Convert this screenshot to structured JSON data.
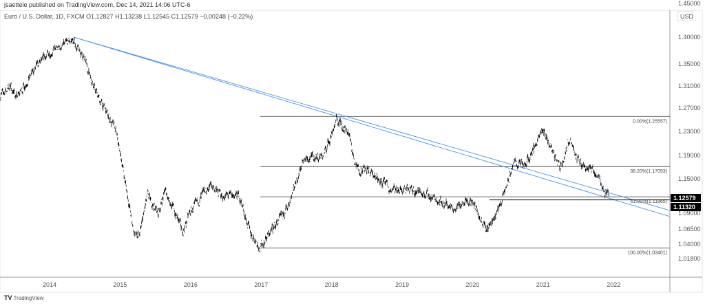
{
  "header": {
    "published": "jsaettele published on TradingView.com, Dec 14, 2021 14:06 UTC-6",
    "legend": "Euro / U.S. Dollar, 1D, FXCM  O1.12827  H1.13238  L1.12545  C1.12579  −0.00248 (−0.22%)"
  },
  "footer": {
    "logo": "TV",
    "brand": "TradingView"
  },
  "chart_data": {
    "type": "line",
    "title": "Euro / U.S. Dollar, 1D, FXCM",
    "currency": "USD",
    "x_ticks": [
      "2014",
      "2015",
      "2016",
      "2017",
      "2018",
      "2019",
      "2020",
      "2021",
      "2022"
    ],
    "y_ticks": [
      "1.40000",
      "1.35000",
      "1.31000",
      "1.27000",
      "1.23000",
      "1.19000",
      "1.15000",
      "1.09000",
      "1.06500",
      "1.04000",
      "1.01800"
    ],
    "top_tick_partial": "1.45000",
    "series": [
      {
        "name": "EURUSD",
        "points": [
          [
            2013.3,
            1.29
          ],
          [
            2013.45,
            1.31
          ],
          [
            2013.55,
            1.29
          ],
          [
            2013.8,
            1.34
          ],
          [
            2014.0,
            1.37
          ],
          [
            2014.15,
            1.38
          ],
          [
            2014.33,
            1.395
          ],
          [
            2014.5,
            1.36
          ],
          [
            2014.7,
            1.29
          ],
          [
            2014.95,
            1.23
          ],
          [
            2015.05,
            1.17
          ],
          [
            2015.2,
            1.06
          ],
          [
            2015.28,
            1.05
          ],
          [
            2015.4,
            1.12
          ],
          [
            2015.55,
            1.09
          ],
          [
            2015.65,
            1.13
          ],
          [
            2015.9,
            1.06
          ],
          [
            2016.0,
            1.09
          ],
          [
            2016.3,
            1.14
          ],
          [
            2016.45,
            1.12
          ],
          [
            2016.7,
            1.12
          ],
          [
            2016.85,
            1.06
          ],
          [
            2017.0,
            1.035
          ],
          [
            2017.2,
            1.07
          ],
          [
            2017.35,
            1.09
          ],
          [
            2017.6,
            1.18
          ],
          [
            2017.9,
            1.19
          ],
          [
            2018.08,
            1.25
          ],
          [
            2018.25,
            1.23
          ],
          [
            2018.35,
            1.17
          ],
          [
            2018.6,
            1.16
          ],
          [
            2018.85,
            1.13
          ],
          [
            2019.2,
            1.13
          ],
          [
            2019.4,
            1.12
          ],
          [
            2019.75,
            1.1
          ],
          [
            2020.0,
            1.11
          ],
          [
            2020.15,
            1.08
          ],
          [
            2020.22,
            1.065
          ],
          [
            2020.35,
            1.09
          ],
          [
            2020.45,
            1.12
          ],
          [
            2020.6,
            1.18
          ],
          [
            2020.75,
            1.17
          ],
          [
            2020.95,
            1.22
          ],
          [
            2021.02,
            1.23
          ],
          [
            2021.25,
            1.17
          ],
          [
            2021.4,
            1.22
          ],
          [
            2021.5,
            1.18
          ],
          [
            2021.65,
            1.17
          ],
          [
            2021.8,
            1.155
          ],
          [
            2021.88,
            1.125
          ],
          [
            2021.95,
            1.1258
          ]
        ]
      }
    ],
    "fib_levels": [
      {
        "label": "0.00%(1.25557)",
        "price": 1.25557
      },
      {
        "label": "38.20%(1.17093)",
        "price": 1.17093
      },
      {
        "label": "61.80%(1.11865)",
        "price": 1.11865
      },
      {
        "label": "100.00%(1.03401)",
        "price": 1.03401
      }
    ],
    "fib_start_year": 2017.0,
    "trendlines": [
      {
        "from": [
          2014.35,
          1.4
        ],
        "to": [
          2022.8,
          1.095
        ]
      },
      {
        "from": [
          2014.35,
          1.4
        ],
        "to": [
          2022.8,
          1.085
        ]
      }
    ],
    "price_labels": [
      {
        "label": "1.12579",
        "price": 1.12579
      },
      {
        "label": "1.11320",
        "price": 1.1132,
        "from_year": 2020.25
      }
    ],
    "colors": {
      "trend": "#4a8ff0",
      "line": "#000000",
      "label_bg": "#000000"
    }
  }
}
